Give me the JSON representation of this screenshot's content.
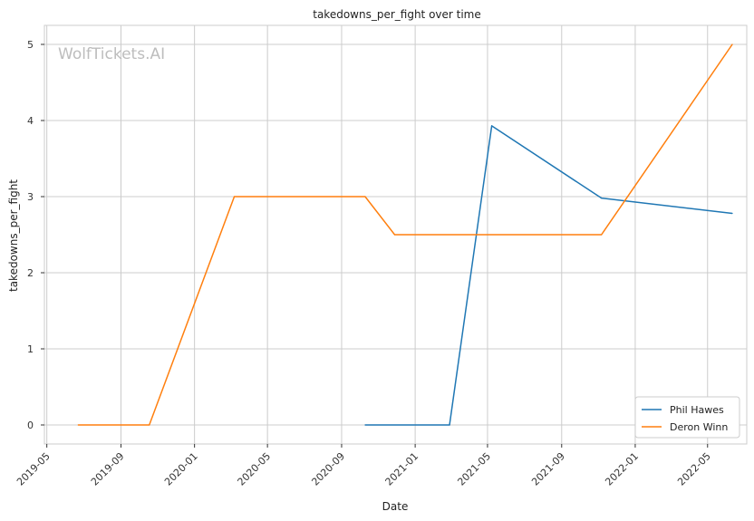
{
  "chart_data": {
    "type": "line",
    "title": "takedowns_per_fight over time",
    "xlabel": "Date",
    "ylabel": "takedowns_per_fight",
    "watermark": "WolfTickets.AI",
    "x_ticks": [
      "2019-05",
      "2019-09",
      "2020-01",
      "2020-05",
      "2020-09",
      "2021-01",
      "2021-05",
      "2021-09",
      "2022-01",
      "2022-05"
    ],
    "y_ticks": [
      0,
      1,
      2,
      3,
      4,
      5
    ],
    "ylim": [
      -0.25,
      5.25
    ],
    "xlim": [
      "2019-04-27",
      "2022-07-05"
    ],
    "grid": true,
    "legend_position": "bottom-right",
    "series": [
      {
        "name": "Phil Hawes",
        "color": "#1f77b4",
        "points": [
          {
            "x": "2020-10-10",
            "y": 0
          },
          {
            "x": "2021-02-27",
            "y": 0
          },
          {
            "x": "2021-05-08",
            "y": 3.93
          },
          {
            "x": "2021-11-06",
            "y": 2.98
          },
          {
            "x": "2022-06-11",
            "y": 2.78
          }
        ]
      },
      {
        "name": "Deron Winn",
        "color": "#ff7f0e",
        "points": [
          {
            "x": "2019-06-22",
            "y": 0
          },
          {
            "x": "2019-10-18",
            "y": 0
          },
          {
            "x": "2020-03-07",
            "y": 3
          },
          {
            "x": "2020-10-10",
            "y": 3
          },
          {
            "x": "2020-11-28",
            "y": 2.5
          },
          {
            "x": "2021-11-06",
            "y": 2.5
          },
          {
            "x": "2022-06-11",
            "y": 5
          }
        ]
      }
    ]
  }
}
